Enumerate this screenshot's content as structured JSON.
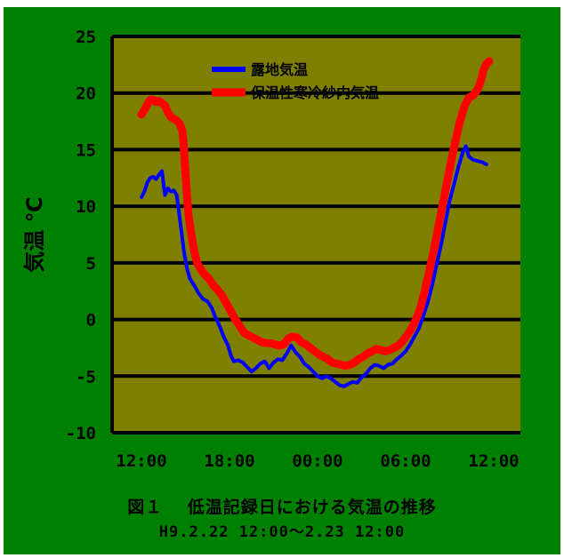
{
  "chart_data": {
    "type": "line",
    "ylabel": "気温 ℃",
    "ylim": [
      -10,
      25
    ],
    "yticks": [
      "25",
      "20",
      "15",
      "10",
      "5",
      "0",
      "-5",
      "-10"
    ],
    "xlim": [
      0,
      24
    ],
    "xticks": [
      {
        "label": "12:00",
        "x": 0
      },
      {
        "label": "18:00",
        "x": 6
      },
      {
        "label": "00:00",
        "x": 12
      },
      {
        "label": "06:00",
        "x": 18
      },
      {
        "label": "12:00",
        "x": 24
      }
    ],
    "grid": "horizontal",
    "legend_position": "top-right",
    "colors": {
      "background": "#008000",
      "plot": "#808000",
      "grid": "#000000"
    },
    "series": [
      {
        "name": "露地気温",
        "color": "#0000ff",
        "points": [
          [
            0.0,
            10.8
          ],
          [
            0.2,
            11.3
          ],
          [
            0.4,
            12.1
          ],
          [
            0.6,
            12.5
          ],
          [
            0.8,
            12.6
          ],
          [
            1.0,
            12.4
          ],
          [
            1.2,
            12.8
          ],
          [
            1.4,
            13.1
          ],
          [
            1.5,
            12.0
          ],
          [
            1.6,
            11.0
          ],
          [
            1.8,
            11.6
          ],
          [
            2.0,
            11.3
          ],
          [
            2.2,
            11.4
          ],
          [
            2.4,
            11.0
          ],
          [
            2.5,
            10.0
          ],
          [
            2.7,
            8.0
          ],
          [
            2.9,
            6.0
          ],
          [
            3.1,
            4.5
          ],
          [
            3.3,
            3.6
          ],
          [
            3.6,
            3.0
          ],
          [
            3.9,
            2.3
          ],
          [
            4.2,
            1.8
          ],
          [
            4.5,
            1.6
          ],
          [
            4.8,
            1.0
          ],
          [
            5.0,
            0.3
          ],
          [
            5.3,
            -0.5
          ],
          [
            5.6,
            -1.5
          ],
          [
            5.9,
            -2.3
          ],
          [
            6.1,
            -3.2
          ],
          [
            6.3,
            -3.7
          ],
          [
            6.6,
            -3.6
          ],
          [
            6.9,
            -3.8
          ],
          [
            7.2,
            -4.2
          ],
          [
            7.5,
            -4.6
          ],
          [
            7.8,
            -4.3
          ],
          [
            8.1,
            -3.9
          ],
          [
            8.4,
            -3.7
          ],
          [
            8.7,
            -4.3
          ],
          [
            9.0,
            -3.8
          ],
          [
            9.3,
            -3.5
          ],
          [
            9.6,
            -3.6
          ],
          [
            9.9,
            -3.0
          ],
          [
            10.2,
            -2.3
          ],
          [
            10.5,
            -2.9
          ],
          [
            10.8,
            -3.3
          ],
          [
            11.1,
            -3.9
          ],
          [
            11.4,
            -4.2
          ],
          [
            11.7,
            -4.6
          ],
          [
            12.0,
            -5.0
          ],
          [
            12.3,
            -5.2
          ],
          [
            12.6,
            -5.0
          ],
          [
            12.9,
            -5.2
          ],
          [
            13.2,
            -5.5
          ],
          [
            13.5,
            -5.8
          ],
          [
            13.8,
            -5.9
          ],
          [
            14.1,
            -5.7
          ],
          [
            14.4,
            -5.5
          ],
          [
            14.7,
            -5.6
          ],
          [
            15.0,
            -5.1
          ],
          [
            15.3,
            -4.8
          ],
          [
            15.6,
            -4.3
          ],
          [
            15.9,
            -4.0
          ],
          [
            16.2,
            -4.1
          ],
          [
            16.5,
            -4.3
          ],
          [
            16.8,
            -4.0
          ],
          [
            17.1,
            -3.9
          ],
          [
            17.4,
            -3.5
          ],
          [
            17.7,
            -3.2
          ],
          [
            18.0,
            -2.8
          ],
          [
            18.3,
            -2.2
          ],
          [
            18.6,
            -1.5
          ],
          [
            18.9,
            -0.8
          ],
          [
            19.2,
            0.3
          ],
          [
            19.5,
            1.5
          ],
          [
            19.8,
            3.0
          ],
          [
            20.1,
            4.8
          ],
          [
            20.4,
            6.5
          ],
          [
            20.7,
            8.5
          ],
          [
            21.0,
            10.5
          ],
          [
            21.3,
            12.0
          ],
          [
            21.6,
            13.5
          ],
          [
            21.9,
            14.8
          ],
          [
            22.1,
            15.3
          ],
          [
            22.3,
            14.4
          ],
          [
            22.6,
            14.1
          ],
          [
            22.9,
            14.0
          ],
          [
            23.2,
            13.9
          ],
          [
            23.5,
            13.7
          ]
        ]
      },
      {
        "name": "保温性寒冷紗内気温",
        "color": "#ff0000",
        "points": [
          [
            0.0,
            18.1
          ],
          [
            0.2,
            18.5
          ],
          [
            0.4,
            19.0
          ],
          [
            0.6,
            19.4
          ],
          [
            0.8,
            19.4
          ],
          [
            1.0,
            19.2
          ],
          [
            1.2,
            19.3
          ],
          [
            1.4,
            19.1
          ],
          [
            1.6,
            18.9
          ],
          [
            1.8,
            18.3
          ],
          [
            2.0,
            17.9
          ],
          [
            2.2,
            17.7
          ],
          [
            2.4,
            17.6
          ],
          [
            2.6,
            17.3
          ],
          [
            2.8,
            16.6
          ],
          [
            2.9,
            15.0
          ],
          [
            3.0,
            13.0
          ],
          [
            3.1,
            11.0
          ],
          [
            3.2,
            9.3
          ],
          [
            3.4,
            7.5
          ],
          [
            3.6,
            6.0
          ],
          [
            3.8,
            5.0
          ],
          [
            4.0,
            4.5
          ],
          [
            4.3,
            4.0
          ],
          [
            4.6,
            3.6
          ],
          [
            4.9,
            3.0
          ],
          [
            5.2,
            2.6
          ],
          [
            5.5,
            2.1
          ],
          [
            5.8,
            1.4
          ],
          [
            6.1,
            0.7
          ],
          [
            6.4,
            0.0
          ],
          [
            6.7,
            -0.6
          ],
          [
            7.0,
            -1.2
          ],
          [
            7.3,
            -1.4
          ],
          [
            7.6,
            -1.6
          ],
          [
            7.9,
            -1.8
          ],
          [
            8.2,
            -2.0
          ],
          [
            8.5,
            -2.1
          ],
          [
            8.8,
            -2.1
          ],
          [
            9.1,
            -2.2
          ],
          [
            9.4,
            -2.3
          ],
          [
            9.7,
            -2.2
          ],
          [
            10.0,
            -1.7
          ],
          [
            10.3,
            -1.5
          ],
          [
            10.6,
            -1.6
          ],
          [
            10.9,
            -2.0
          ],
          [
            11.2,
            -2.2
          ],
          [
            11.5,
            -2.5
          ],
          [
            11.8,
            -2.8
          ],
          [
            12.1,
            -3.1
          ],
          [
            12.4,
            -3.3
          ],
          [
            12.7,
            -3.5
          ],
          [
            13.0,
            -3.8
          ],
          [
            13.3,
            -3.9
          ],
          [
            13.6,
            -4.0
          ],
          [
            13.9,
            -4.1
          ],
          [
            14.2,
            -4.0
          ],
          [
            14.5,
            -3.8
          ],
          [
            14.8,
            -3.5
          ],
          [
            15.1,
            -3.3
          ],
          [
            15.4,
            -3.0
          ],
          [
            15.7,
            -2.8
          ],
          [
            16.0,
            -2.6
          ],
          [
            16.3,
            -2.7
          ],
          [
            16.6,
            -2.8
          ],
          [
            16.9,
            -2.7
          ],
          [
            17.2,
            -2.5
          ],
          [
            17.5,
            -2.3
          ],
          [
            17.8,
            -1.9
          ],
          [
            18.1,
            -1.4
          ],
          [
            18.4,
            -0.8
          ],
          [
            18.7,
            0.0
          ],
          [
            19.0,
            1.0
          ],
          [
            19.3,
            2.5
          ],
          [
            19.6,
            4.2
          ],
          [
            19.9,
            6.0
          ],
          [
            20.2,
            8.0
          ],
          [
            20.5,
            10.0
          ],
          [
            20.8,
            12.0
          ],
          [
            21.1,
            14.0
          ],
          [
            21.4,
            15.8
          ],
          [
            21.7,
            17.5
          ],
          [
            22.0,
            18.8
          ],
          [
            22.3,
            19.6
          ],
          [
            22.6,
            19.8
          ],
          [
            22.9,
            20.3
          ],
          [
            23.1,
            21.0
          ],
          [
            23.3,
            22.0
          ],
          [
            23.5,
            22.6
          ],
          [
            23.7,
            22.8
          ]
        ]
      }
    ]
  },
  "caption": {
    "title": "図１　 低温記録日における気温の推移",
    "period": "H9.2.22 12:00～2.23 12:00"
  }
}
